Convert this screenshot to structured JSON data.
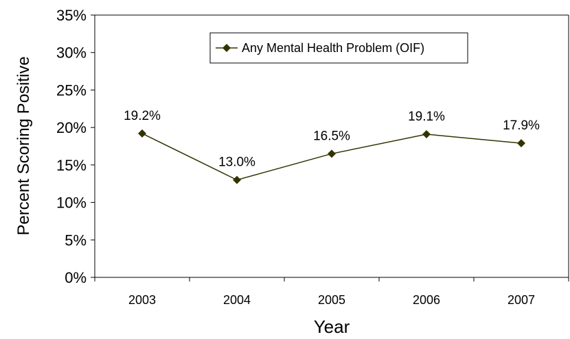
{
  "chart_data": {
    "type": "line",
    "title": "",
    "xlabel": "Year",
    "ylabel": "Percent Scoring Positive",
    "categories": [
      "2003",
      "2004",
      "2005",
      "2006",
      "2007"
    ],
    "y_ticks": [
      "0%",
      "5%",
      "10%",
      "15%",
      "20%",
      "25%",
      "30%",
      "35%"
    ],
    "ylim": [
      0,
      35
    ],
    "grid": false,
    "legend_position": "top-center",
    "series": [
      {
        "name": "Any Mental Health Problem (OIF)",
        "values": [
          19.2,
          13.0,
          16.5,
          19.1,
          17.9
        ],
        "data_labels": [
          "19.2%",
          "13.0%",
          "16.5%",
          "19.1%",
          "17.9%"
        ],
        "color": "#333300",
        "marker": "diamond"
      }
    ]
  }
}
